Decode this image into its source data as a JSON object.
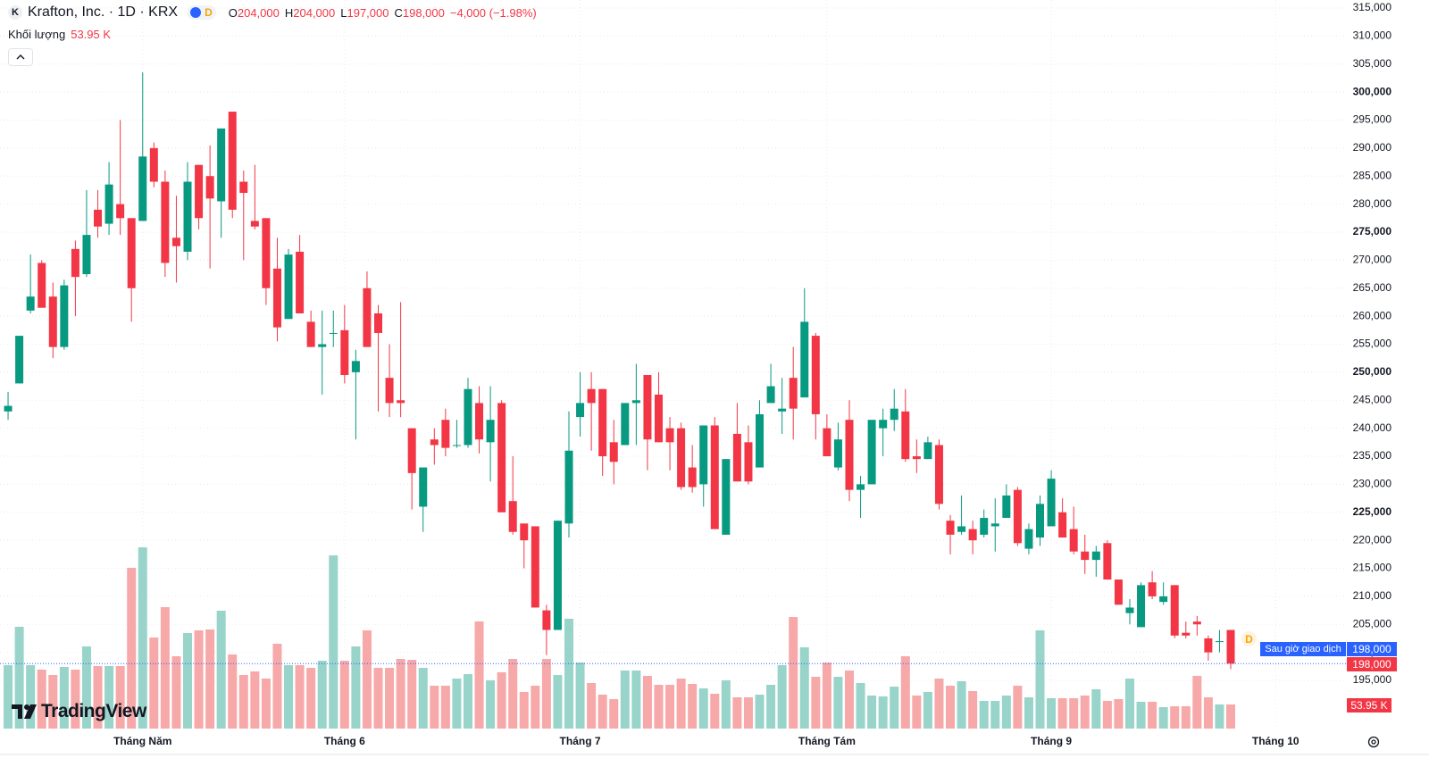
{
  "header": {
    "logo": "K",
    "symbol": "Krafton, Inc. · 1D · KRX",
    "session_badge": "D",
    "ohlc": [
      {
        "key": "O",
        "value": "204,000"
      },
      {
        "key": "H",
        "value": "204,000"
      },
      {
        "key": "L",
        "value": "197,000"
      },
      {
        "key": "C",
        "value": "198,000"
      }
    ],
    "change": "−4,000 (−1.98%)",
    "volume_label": "Khối lượng",
    "volume_value": "53.95 K"
  },
  "branding": "TradingView",
  "chart_data": {
    "type": "candlestick",
    "up_color": "#089981",
    "down_color": "#f23645",
    "volume_up_color": "#98d4ca",
    "volume_down_color": "#f7a8a8",
    "grid": true,
    "xlim": [
      -0.72,
      119.35
    ],
    "xticks": [
      {
        "value": 12,
        "label": "Tháng Năm"
      },
      {
        "value": 30,
        "label": "Tháng 6"
      },
      {
        "value": 51,
        "label": "Tháng 7"
      },
      {
        "value": 73,
        "label": "Tháng Tám"
      },
      {
        "value": 93,
        "label": "Tháng 9"
      },
      {
        "value": 113,
        "label": "Tháng 10"
      }
    ],
    "ylim": [
      186400,
      316430
    ],
    "yticks": [
      {
        "value": 195000,
        "label": "195,000"
      },
      {
        "value": 200000,
        "label": "200,000"
      },
      {
        "value": 205000,
        "label": "205,000"
      },
      {
        "value": 210000,
        "label": "210,000"
      },
      {
        "value": 215000,
        "label": "215,000"
      },
      {
        "value": 220000,
        "label": "220,000"
      },
      {
        "value": 225000,
        "label": "225,000"
      },
      {
        "value": 230000,
        "label": "230,000"
      },
      {
        "value": 235000,
        "label": "235,000"
      },
      {
        "value": 240000,
        "label": "240,000"
      },
      {
        "value": 245000,
        "label": "245,000"
      },
      {
        "value": 250000,
        "label": "250,000"
      },
      {
        "value": 255000,
        "label": "255,000"
      },
      {
        "value": 260000,
        "label": "260,000"
      },
      {
        "value": 265000,
        "label": "265,000"
      },
      {
        "value": 270000,
        "label": "270,000"
      },
      {
        "value": 275000,
        "label": "275,000"
      },
      {
        "value": 280000,
        "label": "280,000"
      },
      {
        "value": 285000,
        "label": "285,000"
      },
      {
        "value": 290000,
        "label": "290,000"
      },
      {
        "value": 295000,
        "label": "295,000"
      },
      {
        "value": 300000,
        "label": "300,000"
      },
      {
        "value": 305000,
        "label": "305,000"
      },
      {
        "value": 310000,
        "label": "310,000"
      },
      {
        "value": 315000,
        "label": "315,000"
      }
    ],
    "vlim": [
      0,
      420000
    ],
    "open": [
      243000,
      248000,
      261000,
      269500,
      263500,
      254500,
      272000,
      267500,
      279000,
      276500,
      280000,
      277500,
      277000,
      290000,
      284000,
      274000,
      271500,
      287000,
      285000,
      280500,
      296500,
      284000,
      277000,
      277500,
      268500,
      259500,
      271500,
      259000,
      254500,
      257000,
      257500,
      250000,
      265000,
      260500,
      249000,
      245000,
      240000,
      226000,
      238000,
      241500,
      237000,
      237000,
      244500,
      237500,
      244500,
      227000,
      223000,
      222500,
      207500,
      204000,
      223000,
      242000,
      247000,
      247000,
      237500,
      237000,
      244500,
      249500,
      246000,
      240000,
      240000,
      233000,
      230000,
      240500,
      221000,
      239000,
      237500,
      233000,
      244500,
      243000,
      249000,
      245500,
      256500,
      240000,
      233000,
      241500,
      229000,
      230000,
      240000,
      241500,
      243000,
      235000,
      234500,
      237000,
      223500,
      221500,
      222000,
      221000,
      222500,
      224000,
      229000,
      218500,
      220500,
      222500,
      225000,
      222000,
      218000,
      216500,
      219500,
      213000,
      207000,
      204500,
      212500,
      209000,
      212000,
      203500,
      205500,
      202500,
      202000,
      204000
    ],
    "high": [
      246500,
      256500,
      271000,
      270000,
      266000,
      266500,
      273500,
      282500,
      282500,
      287500,
      295000,
      277500,
      303500,
      291000,
      286000,
      281500,
      287500,
      287000,
      290500,
      293500,
      296500,
      286000,
      287000,
      277500,
      274000,
      272000,
      274500,
      261000,
      261000,
      261000,
      262000,
      254000,
      268000,
      262000,
      255000,
      262500,
      240000,
      233000,
      240000,
      243500,
      241500,
      249000,
      247500,
      247500,
      245000,
      235000,
      223000,
      222500,
      208500,
      223500,
      243000,
      250000,
      250000,
      247000,
      241500,
      244500,
      251500,
      249500,
      250000,
      242000,
      241000,
      237000,
      240500,
      242000,
      234500,
      244500,
      240500,
      245000,
      251500,
      249000,
      254500,
      265000,
      257000,
      242500,
      241000,
      245000,
      231500,
      241500,
      243500,
      247000,
      247000,
      238000,
      238500,
      238000,
      224500,
      228000,
      223500,
      225500,
      227500,
      230000,
      229500,
      223000,
      228000,
      232500,
      227500,
      226000,
      221000,
      219000,
      220000,
      213000,
      209500,
      212500,
      214500,
      212500,
      212000,
      205500,
      206500,
      203000,
      204000,
      204000
    ],
    "low": [
      241500,
      248000,
      260500,
      261500,
      252500,
      254000,
      260000,
      267000,
      274000,
      274500,
      274500,
      259000,
      277000,
      283000,
      267000,
      266000,
      270000,
      275500,
      268500,
      274000,
      277500,
      270000,
      275500,
      262000,
      255500,
      259500,
      260500,
      254500,
      246000,
      254500,
      248000,
      238000,
      254500,
      243000,
      242000,
      242000,
      225500,
      221500,
      233500,
      235000,
      236500,
      236500,
      235500,
      230500,
      225000,
      221000,
      215000,
      208000,
      199500,
      204000,
      220500,
      238500,
      236000,
      231500,
      230000,
      237000,
      237000,
      232500,
      237500,
      232500,
      229000,
      228500,
      226000,
      222000,
      221000,
      230500,
      230000,
      233000,
      244500,
      239000,
      238000,
      245500,
      238000,
      235000,
      232500,
      227000,
      224000,
      230000,
      235000,
      239500,
      234000,
      232000,
      234500,
      225500,
      217500,
      221000,
      217500,
      220500,
      218000,
      224000,
      219000,
      217500,
      219000,
      222500,
      220500,
      217500,
      214000,
      213500,
      213000,
      208500,
      205000,
      204500,
      209500,
      208500,
      202500,
      202500,
      203000,
      198500,
      200000,
      197000
    ],
    "close": [
      244000,
      256500,
      263500,
      261500,
      254500,
      265500,
      267000,
      274500,
      276000,
      283500,
      277500,
      265000,
      288500,
      284000,
      269500,
      272500,
      284000,
      277500,
      281000,
      293500,
      279000,
      282000,
      276000,
      265000,
      258000,
      271000,
      260500,
      254500,
      255000,
      257000,
      249500,
      252000,
      254500,
      257000,
      244500,
      244500,
      232000,
      233000,
      237000,
      236500,
      237000,
      247000,
      238000,
      241500,
      225000,
      221500,
      220000,
      208000,
      204000,
      223500,
      236000,
      244500,
      244500,
      235000,
      234000,
      244500,
      245000,
      238000,
      237500,
      237500,
      229500,
      229500,
      240500,
      222000,
      234500,
      230500,
      230500,
      242500,
      247500,
      243500,
      243500,
      259000,
      242500,
      235000,
      238000,
      229000,
      230000,
      241500,
      241500,
      243500,
      234500,
      234500,
      237500,
      226500,
      221000,
      222500,
      220000,
      224000,
      223000,
      228000,
      219500,
      222000,
      226500,
      231000,
      220500,
      218000,
      216500,
      218000,
      213000,
      208500,
      208000,
      212000,
      210000,
      210000,
      203000,
      203000,
      205000,
      200000,
      202000,
      198000
    ],
    "volume": [
      142000,
      228000,
      142000,
      132000,
      120000,
      138000,
      132000,
      184000,
      140000,
      140000,
      140000,
      360000,
      406000,
      204000,
      272000,
      162000,
      214000,
      220000,
      222000,
      264000,
      166000,
      120000,
      128000,
      112000,
      190000,
      142000,
      142000,
      136000,
      152000,
      388000,
      152000,
      184000,
      220000,
      136000,
      136000,
      156000,
      154000,
      136000,
      96000,
      96000,
      112000,
      122000,
      240000,
      108000,
      126000,
      156000,
      82000,
      96000,
      156000,
      120000,
      246000,
      148000,
      102000,
      76000,
      66000,
      130000,
      130000,
      118000,
      98000,
      98000,
      112000,
      100000,
      90000,
      78000,
      108000,
      70000,
      70000,
      76000,
      98000,
      142000,
      250000,
      182000,
      116000,
      148000,
      116000,
      130000,
      102000,
      74000,
      72000,
      94000,
      162000,
      74000,
      82000,
      112000,
      96000,
      106000,
      84000,
      62000,
      62000,
      74000,
      96000,
      70000,
      220000,
      68000,
      68000,
      68000,
      74000,
      88000,
      62000,
      66000,
      112000,
      60000,
      60000,
      48000,
      50000,
      50000,
      118000,
      70000,
      54000,
      53950
    ],
    "volume_last_label": "53.95 K",
    "last_price": {
      "value": 198000,
      "label": "198,000"
    },
    "extended_session": {
      "label": "Sau giờ giao dịch",
      "value": 198000,
      "price_label": "198,000"
    },
    "event_marker": "D"
  }
}
